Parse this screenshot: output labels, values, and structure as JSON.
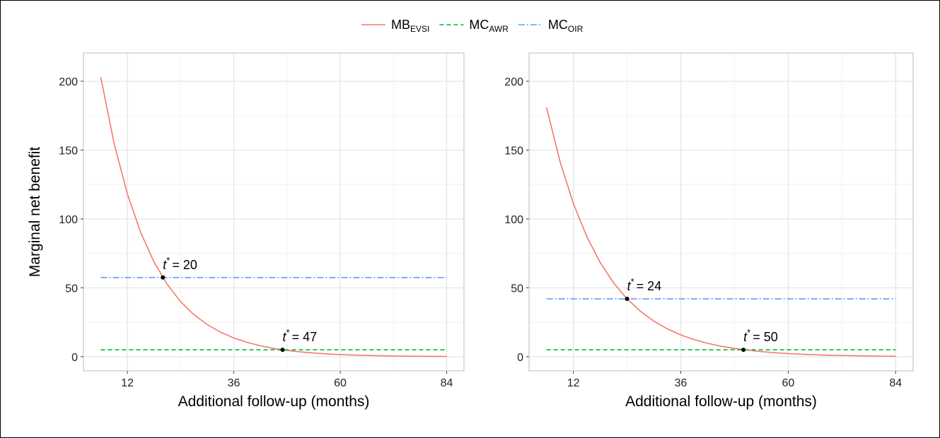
{
  "chart_data": [
    {
      "type": "line",
      "x_label": "Additional follow-up (months)",
      "y_label": "Marginal net benefit",
      "xlim": [
        2.1,
        87.9
      ],
      "ylim": [
        -10.3,
        220.5
      ],
      "xticks": [
        12,
        36,
        60,
        84
      ],
      "yticks": [
        0,
        50,
        100,
        150,
        200
      ],
      "xminor": [
        24,
        48,
        72
      ],
      "yminor": [
        25,
        75,
        125,
        175
      ],
      "grid": true,
      "series": [
        {
          "name": "MB",
          "sub": "EVSI",
          "color": "#F8766D",
          "dash": "solid",
          "x": [
            6,
            9,
            12,
            15,
            18,
            21,
            24,
            27,
            30,
            33,
            36,
            39,
            42,
            45,
            48,
            51,
            54,
            57,
            60,
            63,
            66,
            69,
            72,
            75,
            78,
            81,
            84
          ],
          "values": [
            203,
            154.9,
            118.2,
            90.2,
            68.8,
            52.5,
            40.0,
            30.5,
            23.3,
            17.8,
            13.6,
            10.4,
            7.9,
            6.0,
            4.6,
            3.5,
            2.7,
            2.0,
            1.56,
            1.19,
            0.91,
            0.69,
            0.53,
            0.4,
            0.31,
            0.23,
            0.18
          ]
        },
        {
          "name": "MC",
          "sub": "AWR",
          "color": "#00BA38",
          "dash": "dashed",
          "x": [
            6,
            84
          ],
          "values": [
            5,
            5
          ]
        },
        {
          "name": "MC",
          "sub": "OIR",
          "color": "#619CFF",
          "dash": "dotdash",
          "x": [
            6,
            84
          ],
          "values": [
            57.5,
            57.5
          ]
        }
      ],
      "annotations": [
        {
          "x": 20,
          "y": 57.5,
          "symbol": "t",
          "sup": "*",
          "text": "= 20"
        },
        {
          "x": 47,
          "y": 5,
          "symbol": "t",
          "sup": "*",
          "text": "= 47"
        }
      ]
    },
    {
      "type": "line",
      "x_label": "Additional follow-up (months)",
      "xlim": [
        2.1,
        87.9
      ],
      "ylim": [
        -10.3,
        220.5
      ],
      "xticks": [
        12,
        36,
        60,
        84
      ],
      "yticks": [
        0,
        50,
        100,
        150,
        200
      ],
      "xminor": [
        24,
        48,
        72
      ],
      "yminor": [
        25,
        75,
        125,
        175
      ],
      "grid": true,
      "series": [
        {
          "name": "MB",
          "sub": "EVSI",
          "color": "#F8766D",
          "dash": "solid",
          "x": [
            6,
            9,
            12,
            15,
            18,
            21,
            24,
            27,
            30,
            33,
            36,
            39,
            42,
            45,
            48,
            51,
            54,
            57,
            60,
            63,
            66,
            69,
            72,
            75,
            78,
            81,
            84
          ],
          "values": [
            181,
            141.9,
            111.2,
            87.2,
            68.3,
            53.5,
            42.0,
            32.9,
            25.8,
            20.2,
            15.8,
            12.4,
            9.7,
            7.6,
            6.0,
            4.7,
            3.7,
            2.9,
            2.25,
            1.76,
            1.38,
            1.08,
            0.85,
            0.67,
            0.52,
            0.41,
            0.32
          ]
        },
        {
          "name": "MC",
          "sub": "AWR",
          "color": "#00BA38",
          "dash": "dashed",
          "x": [
            6,
            84
          ],
          "values": [
            5,
            5
          ]
        },
        {
          "name": "MC",
          "sub": "OIR",
          "color": "#619CFF",
          "dash": "dotdash",
          "x": [
            6,
            84
          ],
          "values": [
            42,
            42
          ]
        }
      ],
      "annotations": [
        {
          "x": 24,
          "y": 42,
          "symbol": "t",
          "sup": "*",
          "text": "= 24"
        },
        {
          "x": 50,
          "y": 5,
          "symbol": "t",
          "sup": "*",
          "text": "= 50"
        }
      ]
    }
  ]
}
